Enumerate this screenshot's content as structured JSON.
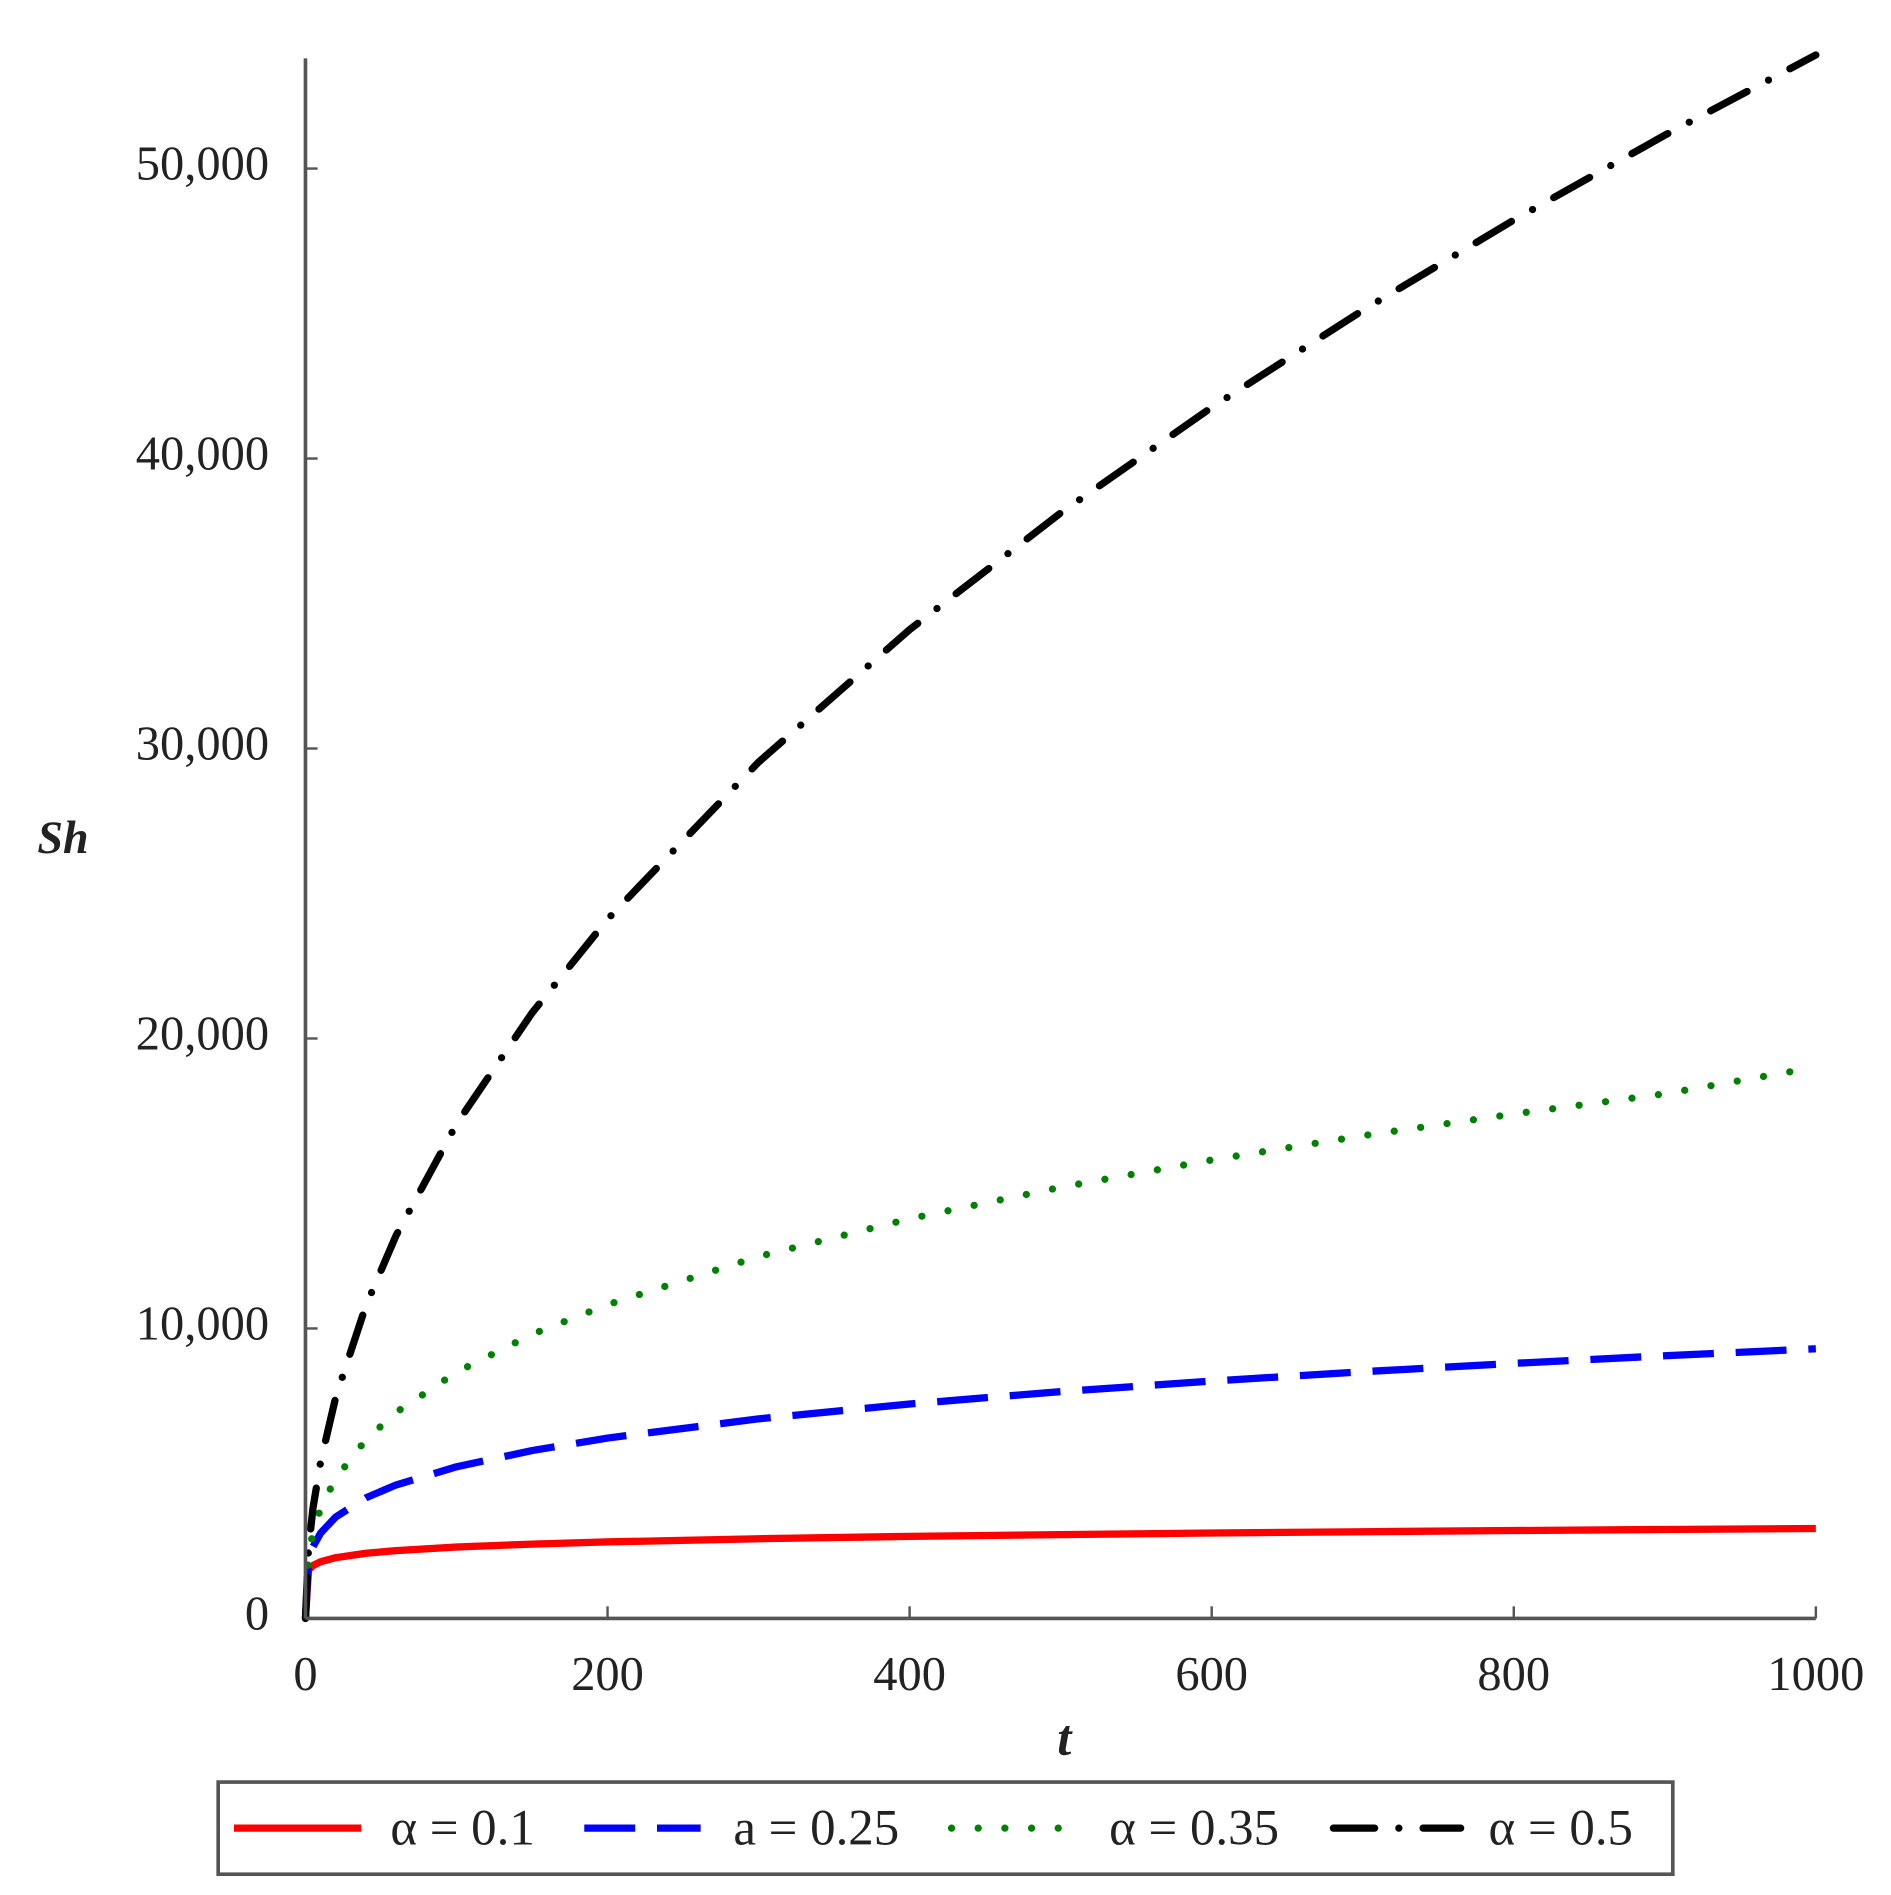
{
  "chart_data": {
    "type": "line",
    "x_label": "t",
    "y_label": "Sh",
    "x": [
      0,
      2,
      5,
      10,
      20,
      40,
      60,
      100,
      150,
      200,
      300,
      400,
      500,
      600,
      700,
      800,
      900,
      1000
    ],
    "series": [
      {
        "name": "α = 0.1",
        "color": "#ff0000",
        "dash": "solid",
        "values": [
          0,
          1666,
          1826,
          1956,
          2096,
          2247,
          2340,
          2463,
          2564,
          2639,
          2749,
          2830,
          2892,
          2946,
          2991,
          3032,
          3068,
          3100
        ]
      },
      {
        "name": "a = 0.25",
        "color": "#0000ff",
        "dash": "dash",
        "values": [
          0,
          1967,
          2473,
          2941,
          3498,
          4160,
          4603,
          5230,
          5789,
          6221,
          6884,
          7397,
          7822,
          8186,
          8508,
          8796,
          9059,
          9300
        ]
      },
      {
        "name": "α = 0.35",
        "color": "#008000",
        "dash": "dot",
        "values": [
          0,
          2160,
          2976,
          3793,
          4833,
          6159,
          7105,
          8490,
          9798,
          10820,
          12480,
          13782,
          14868,
          15810,
          16647,
          17397,
          18092,
          19007
        ]
      },
      {
        "name": "α = 0.5",
        "color": "#000000",
        "dash": "dashdot",
        "values": [
          0,
          2411,
          3812,
          5391,
          7625,
          10784,
          13207,
          17050,
          20882,
          24112,
          29531,
          34100,
          38124,
          41764,
          45110,
          48224,
          51150,
          53917
        ]
      }
    ],
    "xlim": [
      0,
      1000
    ],
    "xticks": [
      0,
      200,
      400,
      600,
      800,
      1000
    ],
    "ylim": [
      0,
      53800
    ],
    "yticks": [
      0,
      {
        "value": 10000,
        "label": "10,000"
      },
      {
        "value": 20000,
        "label": "20,000"
      },
      {
        "value": 30000,
        "label": "30,000"
      },
      {
        "value": 40000,
        "label": "40,000"
      },
      {
        "value": 50000,
        "label": "50,000"
      }
    ],
    "legend": "bottom"
  }
}
